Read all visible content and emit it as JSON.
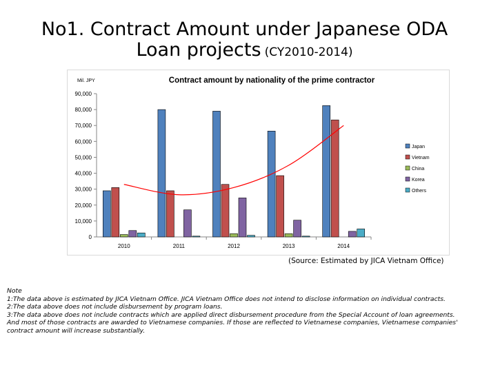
{
  "slide": {
    "title_line1": "No1. Contract Amount under Japanese ODA",
    "title_line2": "Loan projects",
    "title_sub": "(CY2010-2014)",
    "source": "(Source: Estimated by JICA Vietnam Office)",
    "notes": [
      "Note",
      "1:The data above is estimated by JICA Vietnam Office. JICA Vietnam Office does not intend to disclose information on individual contracts.",
      "2:The data above does not include disbursement by program loans.",
      "3:The data above does not include contracts which are applied direct disbursement procedure from the Special Account of loan agreements.",
      "And most of those contracts are awarded to Vietnamese companies. If those are reflected to Vietnamese companies, Vietnamese companies' contract amount will increase substantially."
    ]
  },
  "chart_data": {
    "type": "bar",
    "title": "Contract amount by nationality of the prime contractor",
    "ylabel": "Mil. JPY",
    "xlabel": "",
    "categories": [
      "2010",
      "2011",
      "2012",
      "2013",
      "2014"
    ],
    "ylim": [
      0,
      90000
    ],
    "yticks": [
      "0",
      "10,000",
      "20,000",
      "30,000",
      "40,000",
      "50,000",
      "60,000",
      "70,000",
      "80,000",
      "90,000"
    ],
    "grid": false,
    "legend_position": "right",
    "series": [
      {
        "name": "Japan",
        "color": "#4f81bd",
        "values": [
          29000,
          80000,
          79000,
          66500,
          82500
        ]
      },
      {
        "name": "Vietnam",
        "color": "#c0504d",
        "values": [
          31000,
          29000,
          33000,
          38500,
          73500
        ]
      },
      {
        "name": "China",
        "color": "#9bbb59",
        "values": [
          1500,
          0,
          2000,
          2000,
          0
        ]
      },
      {
        "name": "Korea",
        "color": "#8064a2",
        "values": [
          4000,
          17000,
          24500,
          10500,
          3500
        ]
      },
      {
        "name": "Others",
        "color": "#4bacc6",
        "values": [
          2500,
          500,
          1000,
          500,
          5000
        ]
      }
    ],
    "trendline": {
      "type": "polynomial",
      "color": "#ff0000",
      "series": "Vietnam",
      "values": [
        33000,
        26500,
        31000,
        45000,
        70000
      ]
    }
  }
}
